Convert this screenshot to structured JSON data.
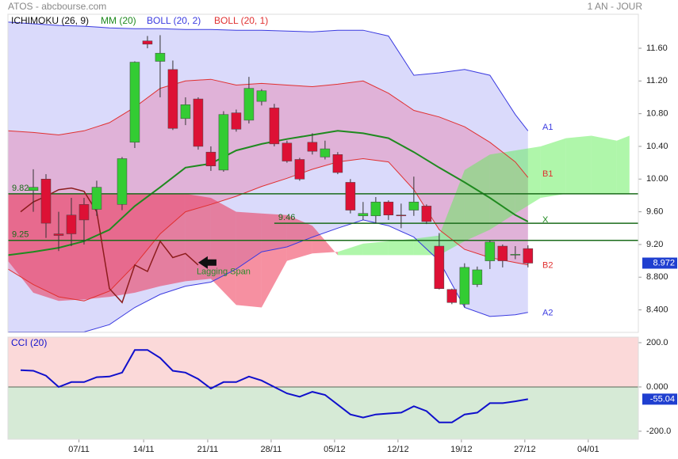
{
  "chart_data": [
    {
      "type": "candlestick",
      "title": "ATOS - abcbourse.com",
      "period": "1 AN - JOUR",
      "x": [
        0,
        1,
        2,
        3,
        4,
        5,
        7,
        8,
        9,
        10,
        11,
        12,
        13,
        14,
        15,
        16,
        17,
        18,
        19,
        20,
        21,
        22,
        23,
        24,
        25,
        26,
        27,
        28,
        29,
        30,
        31,
        32,
        33,
        34,
        35,
        36,
        37,
        38,
        39
      ],
      "open": [
        9.86,
        10.0,
        9.33,
        9.56,
        9.69,
        9.63,
        9.69,
        10.45,
        11.69,
        11.44,
        11.34,
        10.74,
        10.98,
        10.33,
        10.11,
        10.81,
        10.72,
        10.95,
        10.87,
        10.44,
        10.24,
        10.45,
        10.27,
        10.3,
        9.96,
        9.55,
        9.55,
        9.72,
        9.56,
        9.62,
        9.67,
        9.18,
        8.65,
        8.47,
        8.71,
        9.0,
        9.18,
        9.07,
        9.15
      ],
      "high": [
        10.12,
        10.06,
        9.6,
        9.77,
        9.77,
        9.98,
        10.27,
        11.44,
        11.75,
        11.76,
        11.45,
        11.0,
        11.0,
        10.4,
        10.83,
        10.85,
        11.25,
        11.1,
        10.92,
        10.47,
        10.26,
        10.56,
        10.47,
        10.33,
        10.0,
        9.72,
        9.78,
        9.74,
        9.7,
        10.03,
        9.69,
        9.34,
        8.66,
        8.97,
        8.93,
        9.25,
        9.2,
        9.18,
        9.19
      ],
      "low": [
        9.6,
        9.28,
        9.12,
        9.18,
        9.2,
        9.55,
        9.62,
        10.38,
        11.6,
        11.0,
        10.6,
        10.66,
        10.36,
        10.1,
        10.09,
        10.58,
        10.68,
        10.9,
        10.4,
        10.2,
        9.98,
        10.3,
        10.24,
        10.06,
        9.58,
        9.5,
        9.46,
        9.5,
        9.4,
        9.55,
        9.45,
        8.65,
        8.47,
        8.43,
        8.68,
        8.9,
        8.92,
        9.02,
        8.92
      ],
      "close": [
        9.9,
        9.46,
        9.31,
        9.33,
        9.5,
        9.9,
        10.25,
        11.43,
        11.65,
        11.54,
        10.62,
        10.91,
        10.4,
        10.16,
        10.79,
        10.61,
        11.11,
        11.08,
        10.43,
        10.22,
        10.0,
        10.34,
        10.37,
        10.08,
        9.62,
        9.58,
        9.72,
        9.56,
        9.55,
        9.72,
        9.48,
        8.66,
        8.49,
        8.92,
        8.89,
        9.23,
        9.0,
        9.08,
        8.972
      ],
      "up_color": "#33cc33",
      "down_color": "#dd1135",
      "tag_color": "#1f3fd0",
      "xlim": [
        -2,
        47.7
      ],
      "ylim": [
        8.125,
        12.016
      ],
      "yticks": [
        {
          "value": 11.6,
          "label": "11.60"
        },
        {
          "value": 11.2,
          "label": "11.20"
        },
        {
          "value": 10.8,
          "label": "10.80"
        },
        {
          "value": 10.4,
          "label": "10.40"
        },
        {
          "value": 10,
          "label": "10.00"
        },
        {
          "value": 9.6,
          "label": "9.60"
        },
        {
          "value": 9.2,
          "label": "9.20"
        },
        {
          "value": 8.8,
          "label": "8.800"
        },
        {
          "value": 8.4,
          "label": "8.400"
        }
      ],
      "bands": [
        {
          "name": "BOLL (20, 2)",
          "color": "#3a3ae0",
          "fill": "#6a6aee",
          "opacity": 0.25,
          "x": [
            -2,
            0,
            2,
            4,
            6,
            8,
            10,
            12,
            14,
            16,
            18,
            20,
            22,
            24,
            26,
            28,
            30,
            32,
            34,
            36,
            38,
            39
          ],
          "upper": [
            11.92,
            11.9,
            11.88,
            11.87,
            11.85,
            11.84,
            11.84,
            11.83,
            11.83,
            11.82,
            11.82,
            11.81,
            11.8,
            11.82,
            11.82,
            11.75,
            11.27,
            11.3,
            11.34,
            11.27,
            10.79,
            10.59
          ],
          "lower": [
            8.13,
            8.13,
            8.13,
            8.13,
            8.22,
            8.43,
            8.59,
            8.69,
            8.74,
            8.9,
            9.11,
            9.17,
            9.29,
            9.4,
            9.5,
            9.43,
            9.29,
            9.0,
            8.43,
            8.32,
            8.34,
            8.37
          ],
          "upper_label": "A1",
          "lower_label": "A2"
        },
        {
          "name": "BOLL (20, 1)",
          "color": "#e03030",
          "fill": "#ee5588",
          "opacity": 0.3,
          "x": [
            -2,
            0,
            2,
            4,
            6,
            8,
            10,
            12,
            14,
            16,
            18,
            20,
            22,
            24,
            26,
            28,
            30,
            32,
            34,
            36,
            38,
            39
          ],
          "upper": [
            10.59,
            10.57,
            10.54,
            10.59,
            10.69,
            10.88,
            11.11,
            11.2,
            11.22,
            11.15,
            11.17,
            11.15,
            11.13,
            11.16,
            11.2,
            11.05,
            10.84,
            10.76,
            10.64,
            10.45,
            10.21,
            10.02
          ],
          "lower": [
            8.9,
            8.71,
            8.56,
            8.51,
            8.63,
            8.95,
            9.33,
            9.6,
            9.69,
            9.79,
            9.91,
            10.01,
            10.12,
            10.21,
            10.25,
            10.21,
            9.87,
            9.38,
            9.14,
            9.04,
            8.98,
            8.95
          ],
          "upper_label": "B1",
          "lower_label": "B2"
        }
      ],
      "lines": [
        {
          "name": "MM (20)",
          "color": "#1f8a1f",
          "x": [
            -2,
            0,
            2,
            4,
            6,
            8,
            10,
            12,
            14,
            16,
            18,
            20,
            22,
            24,
            26,
            28,
            30,
            32,
            34,
            36,
            38,
            39
          ],
          "values": [
            9.07,
            9.11,
            9.16,
            9.24,
            9.38,
            9.67,
            9.9,
            10.14,
            10.19,
            10.35,
            10.43,
            10.49,
            10.54,
            10.59,
            10.56,
            10.5,
            10.33,
            10.14,
            9.96,
            9.77,
            9.56,
            9.48
          ],
          "end_label": "X"
        }
      ],
      "ichimoku": {
        "name": "ICHIMOKU (26, 9)",
        "color": "#111111",
        "x": [
          -2,
          0,
          2,
          4,
          6,
          8,
          10,
          12,
          14,
          16,
          18,
          20,
          22,
          24,
          26,
          28,
          30,
          32,
          34,
          36,
          38,
          40,
          42,
          44,
          46,
          47
        ],
        "span_a": [
          9.0,
          8.61,
          8.51,
          8.53,
          8.56,
          8.61,
          8.69,
          8.75,
          8.78,
          8.46,
          8.43,
          9.0,
          9.09,
          9.11,
          9.21,
          9.24,
          9.27,
          9.31,
          10.11,
          10.3,
          10.35,
          10.4,
          10.5,
          10.53,
          10.47,
          10.53
        ],
        "span_b": [
          9.82,
          9.82,
          9.82,
          9.82,
          9.82,
          9.82,
          9.82,
          9.82,
          9.77,
          9.6,
          9.58,
          9.56,
          9.43,
          9.07,
          9.07,
          9.07,
          9.07,
          9.07,
          9.24,
          9.38,
          9.58,
          9.77,
          9.82,
          9.82,
          9.82,
          9.82
        ],
        "bull_color": "#5fee55",
        "bear_color": "#ee2244",
        "opacity": 0.5,
        "lagging": {
          "name": "Lagging Span",
          "color": "#8c1c1c",
          "label_color": "#2a8a2a",
          "x": [
            -1,
            0,
            1,
            2,
            3,
            4,
            5,
            6,
            7,
            8,
            9,
            10,
            11,
            12,
            13
          ],
          "values": [
            9.6,
            9.72,
            9.79,
            9.87,
            9.89,
            9.85,
            9.6,
            8.66,
            8.49,
            8.95,
            8.87,
            9.24,
            9.04,
            9.09,
            8.95
          ]
        },
        "levels": [
          {
            "value": 9.82,
            "x_start": -2
          },
          {
            "value": 9.25,
            "x_start": -2
          },
          {
            "value": 9.46,
            "x_start": 19
          }
        ],
        "level_color": "#1a6b1a"
      }
    },
    {
      "type": "line",
      "title": "CCI (20)",
      "color": "#1010cc",
      "x": [
        -1,
        0,
        1,
        2,
        3,
        4,
        5,
        6,
        7,
        8,
        9,
        10,
        11,
        12,
        13,
        14,
        15,
        16,
        17,
        18,
        19,
        20,
        21,
        22,
        23,
        24,
        25,
        26,
        27,
        28,
        29,
        30,
        31,
        32,
        33,
        34,
        35,
        36,
        37,
        38,
        39
      ],
      "values": [
        76,
        73,
        51,
        0,
        22,
        22,
        44,
        47,
        65,
        167,
        167,
        131,
        73,
        65,
        36,
        -7,
        22,
        22,
        47,
        29,
        0,
        -29,
        -44,
        -22,
        -36,
        -80,
        -124,
        -138,
        -124,
        -120,
        -116,
        -87,
        -109,
        -160,
        -160,
        -124,
        -116,
        -73,
        -73,
        -65,
        -55.04
      ],
      "xlim": [
        -2,
        47.7
      ],
      "ylim": [
        -236,
        225
      ],
      "yticks": [
        {
          "value": 200,
          "label": "200.0"
        },
        {
          "value": 0,
          "label": "0.000"
        },
        {
          "value": -200,
          "label": "-200.0"
        }
      ],
      "xticks": [
        {
          "value": 3.6,
          "label": "07/11"
        },
        {
          "value": 8.7,
          "label": "14/11"
        },
        {
          "value": 13.75,
          "label": "21/11"
        },
        {
          "value": 18.75,
          "label": "28/11"
        },
        {
          "value": 23.75,
          "label": "05/12"
        },
        {
          "value": 28.75,
          "label": "12/12"
        },
        {
          "value": 33.75,
          "label": "19/12"
        },
        {
          "value": 38.75,
          "label": "27/12"
        },
        {
          "value": 43.75,
          "label": "04/01"
        }
      ],
      "above_color": "#fbd9d9",
      "below_color": "#d6ead6",
      "zero_line": true,
      "tag_color": "#1f3fd0"
    }
  ]
}
